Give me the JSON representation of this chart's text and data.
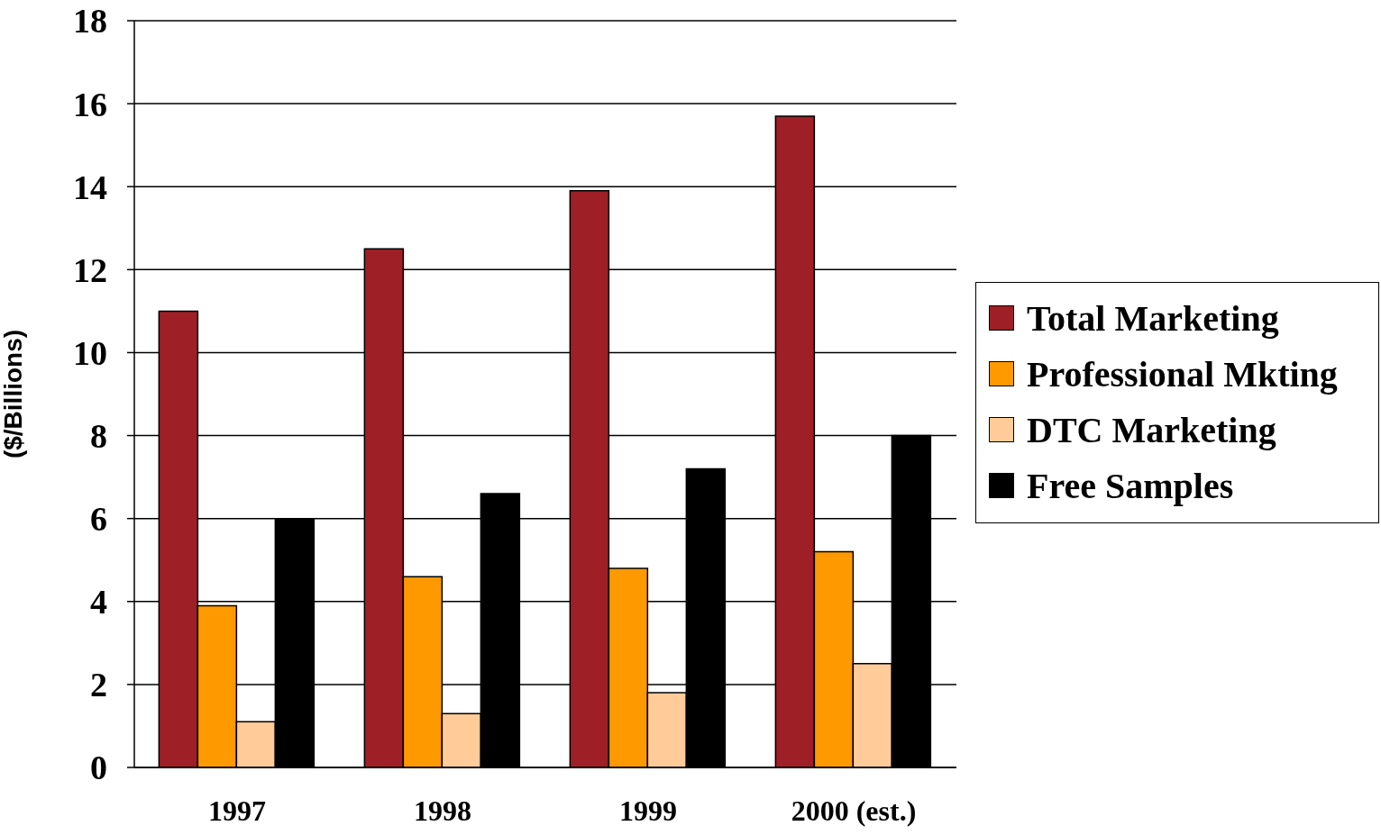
{
  "chart_data": {
    "type": "bar",
    "ylabel": "($/Billions)",
    "categories": [
      "1997",
      "1998",
      "1999",
      "2000 (est.)"
    ],
    "series": [
      {
        "name": "Total Marketing",
        "color": "#9e1f26",
        "values": [
          11.0,
          12.5,
          13.9,
          15.7
        ]
      },
      {
        "name": "Professional Mkting",
        "color": "#ff9900",
        "values": [
          3.9,
          4.6,
          4.8,
          5.2
        ]
      },
      {
        "name": "DTC Marketing",
        "color": "#ffcc99",
        "values": [
          1.1,
          1.3,
          1.8,
          2.5
        ]
      },
      {
        "name": "Free Samples",
        "color": "#000000",
        "values": [
          6.0,
          6.6,
          7.2,
          8.0
        ]
      }
    ],
    "ylim": [
      0,
      18
    ],
    "yticks": [
      0,
      2,
      4,
      6,
      8,
      10,
      12,
      14,
      16,
      18
    ],
    "grid": "y",
    "legend": "right"
  }
}
